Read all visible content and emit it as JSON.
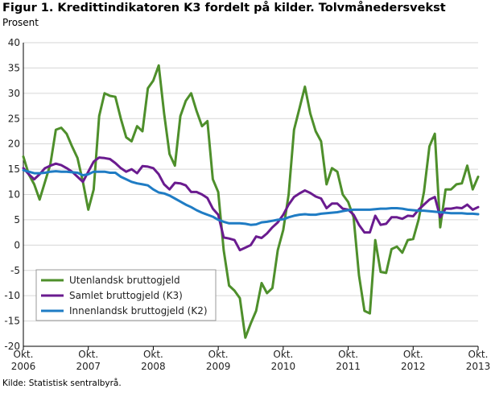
{
  "title": "Figur 1. Kredittindikatoren K3 fordelt på kilder. Tolvmånedersvekst",
  "ylabel": "Prosent",
  "source": "Kilde: Statistisk sentralbyrå.",
  "chart_data": {
    "type": "line",
    "title": "Figur 1. Kredittindikatoren K3 fordelt på kilder. Tolvmånedersvekst",
    "ylabel": "Prosent",
    "xlabel": "",
    "ylim": [
      -20,
      40
    ],
    "yticks": [
      -20,
      -15,
      -10,
      -5,
      0,
      5,
      10,
      15,
      20,
      25,
      30,
      35,
      40
    ],
    "xticks": [
      {
        "line1": "Okt.",
        "line2": "2006",
        "t": 0
      },
      {
        "line1": "Okt.",
        "line2": "2007",
        "t": 12
      },
      {
        "line1": "Okt.",
        "line2": "2008",
        "t": 24
      },
      {
        "line1": "Okt.",
        "line2": "2009",
        "t": 36
      },
      {
        "line1": "Okt.",
        "line2": "2010",
        "t": 48
      },
      {
        "line1": "Okt.",
        "line2": "2011",
        "t": 60
      },
      {
        "line1": "Okt.",
        "line2": "2012",
        "t": 72
      },
      {
        "line1": "Okt.",
        "line2": "2013",
        "t": 84
      }
    ],
    "xlim": [
      0,
      84
    ],
    "grid": true,
    "legend_position": "bottom-left",
    "series": [
      {
        "name": "Utenlandsk bruttogjeld",
        "color": "#4e8f2b",
        "values": [
          17.5,
          14,
          12,
          9,
          12.5,
          16,
          22.8,
          23.2,
          22,
          19.5,
          17.2,
          12.5,
          7,
          11,
          25.5,
          30,
          29.5,
          29.3,
          25,
          21.3,
          20.5,
          23.5,
          22.5,
          31,
          32.5,
          35.5,
          26,
          18,
          15.7,
          25.5,
          28.5,
          30,
          26.5,
          23.5,
          24.5,
          13,
          10.5,
          -1,
          -8,
          -9,
          -10.5,
          -18.3,
          -15.5,
          -13,
          -7.5,
          -9.5,
          -8.5,
          -1,
          3,
          10,
          22.8,
          27,
          31.3,
          26,
          22.5,
          20.5,
          12,
          15.2,
          14.5,
          10,
          8.5,
          5.5,
          -6,
          -13,
          -13.5,
          1,
          -5.3,
          -5.5,
          -0.8,
          -0.3,
          -1.5,
          1,
          1.2,
          5,
          10.5,
          19.5,
          22,
          3.5,
          11,
          11,
          12,
          12.2,
          15.7,
          11,
          13.5
        ]
      },
      {
        "name": "Samlet bruttogjeld (K3)",
        "color": "#6a1b8f",
        "values": [
          15.2,
          14,
          13,
          14,
          15.2,
          15.7,
          16.1,
          15.8,
          15.2,
          14.5,
          13.5,
          12.5,
          14.5,
          16.5,
          17.3,
          17.2,
          17,
          16.2,
          15.2,
          14.5,
          15,
          14.2,
          15.6,
          15.5,
          15.2,
          14,
          12,
          11,
          12.3,
          12.2,
          11.8,
          10.5,
          10.5,
          10,
          9.3,
          7.2,
          6,
          1.5,
          1.3,
          1,
          -1,
          -0.5,
          0,
          1.7,
          1.4,
          2.3,
          3.5,
          4.5,
          6,
          8,
          9.5,
          10.2,
          10.8,
          10.3,
          9.6,
          9.2,
          7.3,
          8.2,
          8.2,
          7.2,
          7,
          6,
          4,
          2.5,
          2.5,
          5.8,
          4,
          4.2,
          5.5,
          5.5,
          5.2,
          5.8,
          5.7,
          7,
          8,
          9,
          9.5,
          5.5,
          7.2,
          7.2,
          7.4,
          7.3,
          8,
          7,
          7.5
        ]
      },
      {
        "name": "Innenlandsk bruttogjeld (K2)",
        "color": "#1f7cc4",
        "values": [
          14.8,
          14.5,
          14.2,
          14.2,
          14.3,
          14.5,
          14.6,
          14.5,
          14.5,
          14.4,
          14.3,
          13.8,
          14,
          14.5,
          14.5,
          14.5,
          14.3,
          14.3,
          13.5,
          13,
          12.5,
          12.2,
          12,
          11.8,
          11,
          10.4,
          10.2,
          9.8,
          9.2,
          8.6,
          8,
          7.5,
          6.9,
          6.4,
          6,
          5.6,
          5,
          4.6,
          4.3,
          4.3,
          4.3,
          4.2,
          4,
          4.1,
          4.5,
          4.6,
          4.8,
          5,
          5.1,
          5.5,
          5.8,
          6,
          6.1,
          6,
          6,
          6.2,
          6.3,
          6.4,
          6.5,
          6.7,
          6.9,
          7,
          7,
          7,
          7,
          7.1,
          7.2,
          7.2,
          7.3,
          7.3,
          7.2,
          7,
          6.9,
          6.8,
          6.8,
          6.7,
          6.6,
          6.5,
          6.4,
          6.3,
          6.3,
          6.3,
          6.2,
          6.2,
          6.1
        ]
      }
    ]
  }
}
